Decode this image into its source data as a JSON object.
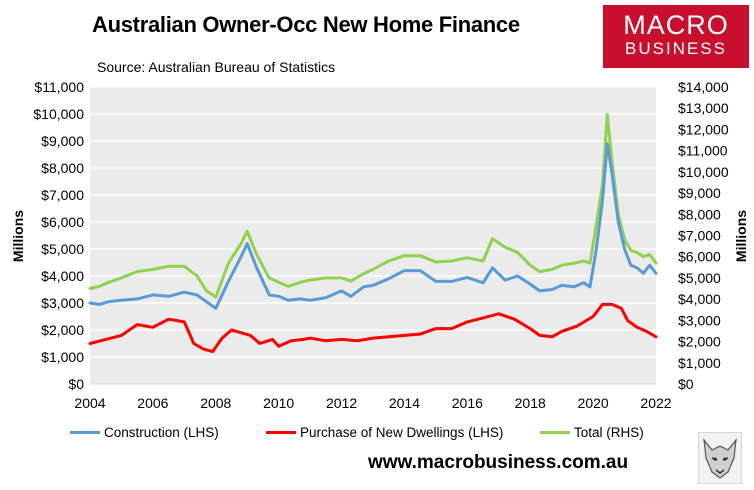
{
  "header": {
    "title": "Australian Owner-Occ New Home Finance",
    "source": "Source: Australian Bureau of Statistics",
    "logo_line1": "MACRO",
    "logo_line2": "BUSINESS",
    "url": "www.macrobusiness.com.au"
  },
  "chart_data": {
    "type": "line",
    "left_axis": {
      "label": "Millions",
      "min": 0,
      "max": 11000,
      "step": 1000,
      "ticks": [
        "$0",
        "$1,000",
        "$2,000",
        "$3,000",
        "$4,000",
        "$5,000",
        "$6,000",
        "$7,000",
        "$8,000",
        "$9,000",
        "$10,000",
        "$11,000"
      ]
    },
    "right_axis": {
      "label": "Millions",
      "min": 0,
      "max": 14000,
      "step": 1000,
      "ticks": [
        "$0",
        "$1,000",
        "$2,000",
        "$3,000",
        "$4,000",
        "$5,000",
        "$6,000",
        "$7,000",
        "$8,000",
        "$9,000",
        "$10,000",
        "$11,000",
        "$12,000",
        "$13,000",
        "$14,000"
      ]
    },
    "x_axis": {
      "min": 2004,
      "max": 2022,
      "ticks": [
        "2004",
        "2006",
        "2008",
        "2010",
        "2012",
        "2014",
        "2016",
        "2018",
        "2020",
        "2022"
      ]
    },
    "grid": "horizontal",
    "legend_position": "bottom",
    "series": [
      {
        "name": "Construction (LHS)",
        "axis": "left",
        "color": "#5b9bd5",
        "x": [
          2004.0,
          2004.3,
          2004.6,
          2005.0,
          2005.5,
          2006.0,
          2006.5,
          2007.0,
          2007.4,
          2007.7,
          2008.0,
          2008.4,
          2008.8,
          2009.0,
          2009.3,
          2009.7,
          2010.0,
          2010.3,
          2010.7,
          2011.0,
          2011.5,
          2012.0,
          2012.3,
          2012.7,
          2013.0,
          2013.5,
          2014.0,
          2014.5,
          2015.0,
          2015.5,
          2016.0,
          2016.5,
          2016.8,
          2017.2,
          2017.6,
          2018.0,
          2018.3,
          2018.7,
          2019.0,
          2019.4,
          2019.7,
          2019.9,
          2020.1,
          2020.3,
          2020.45,
          2020.6,
          2020.8,
          2021.0,
          2021.2,
          2021.4,
          2021.6,
          2021.8,
          2022.0
        ],
        "y": [
          3000,
          2950,
          3050,
          3100,
          3150,
          3300,
          3250,
          3400,
          3300,
          3050,
          2800,
          3800,
          4700,
          5200,
          4300,
          3300,
          3250,
          3100,
          3150,
          3100,
          3200,
          3450,
          3250,
          3600,
          3650,
          3900,
          4200,
          4200,
          3800,
          3800,
          3950,
          3750,
          4300,
          3850,
          4000,
          3700,
          3450,
          3500,
          3650,
          3600,
          3750,
          3600,
          5000,
          6800,
          8900,
          7800,
          6000,
          5000,
          4400,
          4300,
          4100,
          4400,
          4100
        ]
      },
      {
        "name": "Purchase of New Dwellings (LHS)",
        "axis": "left",
        "color": "#ff0000",
        "x": [
          2004.0,
          2004.5,
          2005.0,
          2005.5,
          2006.0,
          2006.5,
          2007.0,
          2007.3,
          2007.6,
          2007.9,
          2008.2,
          2008.5,
          2008.8,
          2009.1,
          2009.4,
          2009.8,
          2010.0,
          2010.4,
          2010.8,
          2011.0,
          2011.5,
          2012.0,
          2012.5,
          2013.0,
          2013.5,
          2014.0,
          2014.5,
          2015.0,
          2015.5,
          2016.0,
          2016.5,
          2017.0,
          2017.5,
          2018.0,
          2018.3,
          2018.7,
          2019.0,
          2019.5,
          2020.0,
          2020.3,
          2020.6,
          2020.9,
          2021.1,
          2021.4,
          2021.7,
          2022.0
        ],
        "y": [
          1500,
          1650,
          1800,
          2200,
          2100,
          2400,
          2300,
          1500,
          1300,
          1200,
          1700,
          2000,
          1900,
          1800,
          1500,
          1650,
          1400,
          1600,
          1650,
          1700,
          1600,
          1650,
          1600,
          1700,
          1750,
          1800,
          1850,
          2050,
          2050,
          2300,
          2450,
          2600,
          2400,
          2050,
          1800,
          1750,
          1950,
          2150,
          2500,
          2950,
          2950,
          2800,
          2350,
          2100,
          1950,
          1750
        ]
      },
      {
        "name": "Total (RHS)",
        "axis": "right",
        "color": "#92d050",
        "x": [
          2004.0,
          2004.3,
          2004.6,
          2005.0,
          2005.5,
          2006.0,
          2006.5,
          2007.0,
          2007.4,
          2007.7,
          2008.0,
          2008.4,
          2008.8,
          2009.0,
          2009.3,
          2009.7,
          2010.0,
          2010.3,
          2010.7,
          2011.0,
          2011.5,
          2012.0,
          2012.3,
          2012.7,
          2013.0,
          2013.5,
          2014.0,
          2014.5,
          2015.0,
          2015.5,
          2016.0,
          2016.5,
          2016.8,
          2017.2,
          2017.6,
          2018.0,
          2018.3,
          2018.7,
          2019.0,
          2019.4,
          2019.7,
          2019.9,
          2020.1,
          2020.3,
          2020.45,
          2020.6,
          2020.8,
          2021.0,
          2021.2,
          2021.4,
          2021.6,
          2021.8,
          2022.0
        ],
        "y": [
          4500,
          4600,
          4800,
          5000,
          5300,
          5400,
          5550,
          5550,
          5100,
          4400,
          4100,
          5700,
          6600,
          7200,
          6100,
          5000,
          4800,
          4600,
          4800,
          4900,
          5000,
          5000,
          4850,
          5200,
          5400,
          5800,
          6050,
          6050,
          5750,
          5800,
          5950,
          5800,
          6850,
          6450,
          6200,
          5600,
          5300,
          5400,
          5600,
          5700,
          5800,
          5700,
          7500,
          9400,
          12700,
          10500,
          8000,
          6800,
          6300,
          6200,
          6000,
          6100,
          5700
        ]
      }
    ]
  }
}
